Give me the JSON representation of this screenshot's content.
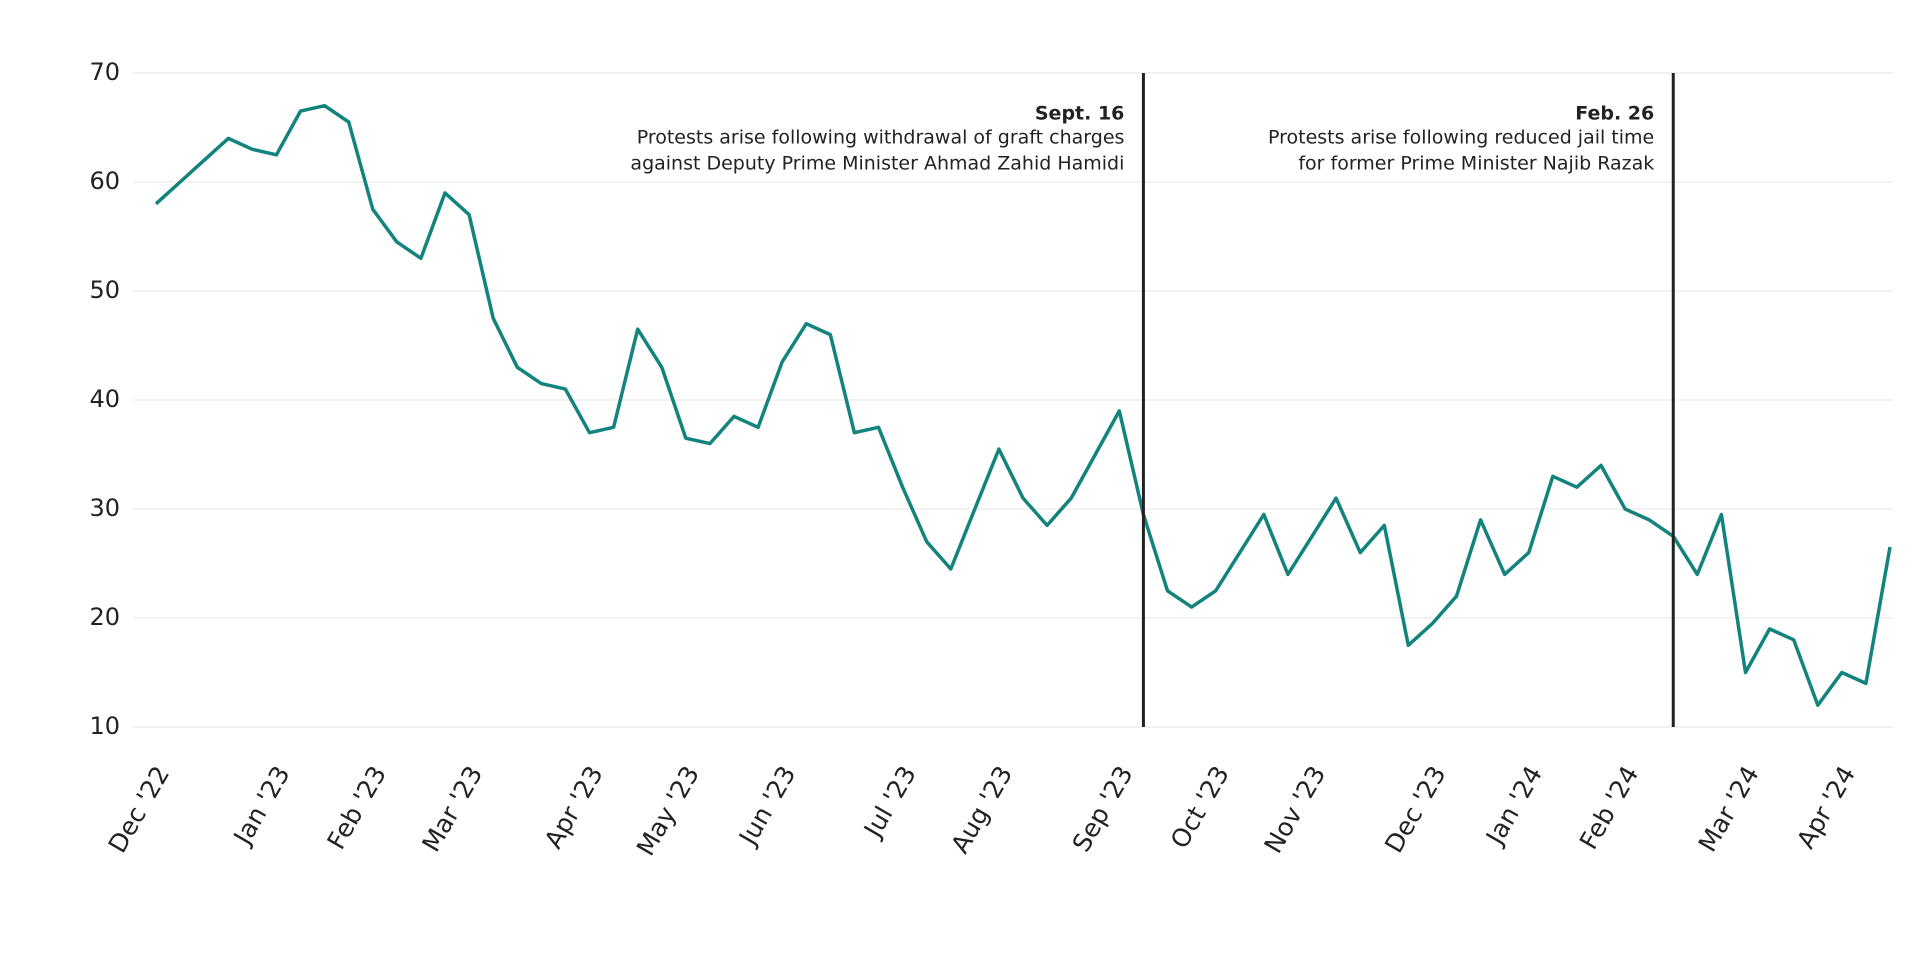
{
  "chart_data": {
    "type": "line",
    "categories": [
      "Dec '22",
      null,
      null,
      null,
      null,
      "Jan '23",
      null,
      null,
      null,
      "Feb '23",
      null,
      null,
      null,
      "Mar '23",
      null,
      null,
      null,
      null,
      "Apr '23",
      null,
      null,
      null,
      "May '23",
      null,
      null,
      null,
      "Jun '23",
      null,
      null,
      null,
      null,
      "Jul '23",
      null,
      null,
      null,
      "Aug '23",
      null,
      null,
      null,
      null,
      "Sep '23",
      null,
      null,
      null,
      "Oct '23",
      null,
      null,
      null,
      "Nov '23",
      null,
      null,
      null,
      null,
      "Dec '23",
      null,
      null,
      null,
      "Jan '24",
      null,
      null,
      null,
      "Feb '24",
      null,
      null,
      null,
      null,
      "Mar '24",
      null,
      null,
      null,
      "Apr '24",
      null,
      null
    ],
    "series": [
      {
        "color": "#13837d",
        "values": [
          58,
          60,
          62,
          64,
          63,
          62.5,
          66.5,
          67,
          65.5,
          57.5,
          54.5,
          53,
          59,
          57,
          47.5,
          43,
          41.5,
          41,
          37,
          37.5,
          46.5,
          43,
          36.5,
          36,
          38.5,
          37.5,
          43.5,
          47,
          46,
          37,
          37.5,
          32,
          27,
          24.5,
          30,
          35.5,
          31,
          28.5,
          31,
          35,
          39,
          29.5,
          22.5,
          21,
          22.5,
          26,
          29.5,
          24,
          27.5,
          31,
          26,
          28.5,
          17.5,
          19.5,
          22,
          29,
          24,
          26,
          33,
          32,
          34,
          30,
          29,
          27.5,
          24,
          29.5,
          15,
          19,
          18,
          12,
          15,
          14,
          26.5
        ]
      }
    ],
    "ylim": [
      10,
      70
    ],
    "yticks": [
      10,
      20,
      30,
      40,
      50,
      60,
      70
    ],
    "grid": true,
    "annotations": [
      {
        "at": 41,
        "title": "Sept. 16",
        "lines": [
          "Protests arise following withdrawal of graft charges",
          "against Deputy Prime Minister Ahmad Zahid Hamidi"
        ]
      },
      {
        "at": 63,
        "title": "Feb. 26",
        "lines": [
          "Protests arise following reduced jail time",
          "for former Prime Minister Najib Razak"
        ]
      }
    ]
  }
}
